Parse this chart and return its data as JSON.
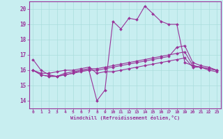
{
  "background_color": "#c8eef0",
  "grid_color": "#aadddd",
  "line_color": "#993399",
  "xlabel": "Windchill (Refroidissement éolien,°C)",
  "xlim": [
    -0.5,
    23.5
  ],
  "ylim": [
    13.5,
    20.5
  ],
  "xticks": [
    0,
    1,
    2,
    3,
    4,
    5,
    6,
    7,
    8,
    9,
    10,
    11,
    12,
    13,
    14,
    15,
    16,
    17,
    18,
    19,
    20,
    21,
    22,
    23
  ],
  "yticks": [
    14,
    15,
    16,
    17,
    18,
    19,
    20
  ],
  "series": [
    [
      16.7,
      16.0,
      15.7,
      15.6,
      15.7,
      15.8,
      16.0,
      16.0,
      14.0,
      14.7,
      19.2,
      18.7,
      19.4,
      19.3,
      20.2,
      19.7,
      19.2,
      19.0,
      19.0,
      16.5,
      16.3,
      16.2,
      16.0,
      15.9
    ],
    [
      16.0,
      15.8,
      15.8,
      15.9,
      16.0,
      16.0,
      16.1,
      16.2,
      15.8,
      15.9,
      15.9,
      16.0,
      16.1,
      16.2,
      16.3,
      16.4,
      16.5,
      16.6,
      16.7,
      16.8,
      16.2,
      16.2,
      16.1,
      16.0
    ],
    [
      16.0,
      15.7,
      15.6,
      15.6,
      15.7,
      15.8,
      15.9,
      16.0,
      16.0,
      16.1,
      16.2,
      16.3,
      16.4,
      16.5,
      16.6,
      16.7,
      16.8,
      16.9,
      17.5,
      17.6,
      16.5,
      16.3,
      16.2,
      16.0
    ],
    [
      16.0,
      15.7,
      15.6,
      15.6,
      15.8,
      15.9,
      16.0,
      16.1,
      16.1,
      16.2,
      16.3,
      16.4,
      16.5,
      16.6,
      16.7,
      16.8,
      16.9,
      17.0,
      17.1,
      17.2,
      16.3,
      16.2,
      16.1,
      16.0
    ]
  ],
  "figsize": [
    3.2,
    2.0
  ],
  "dpi": 100
}
